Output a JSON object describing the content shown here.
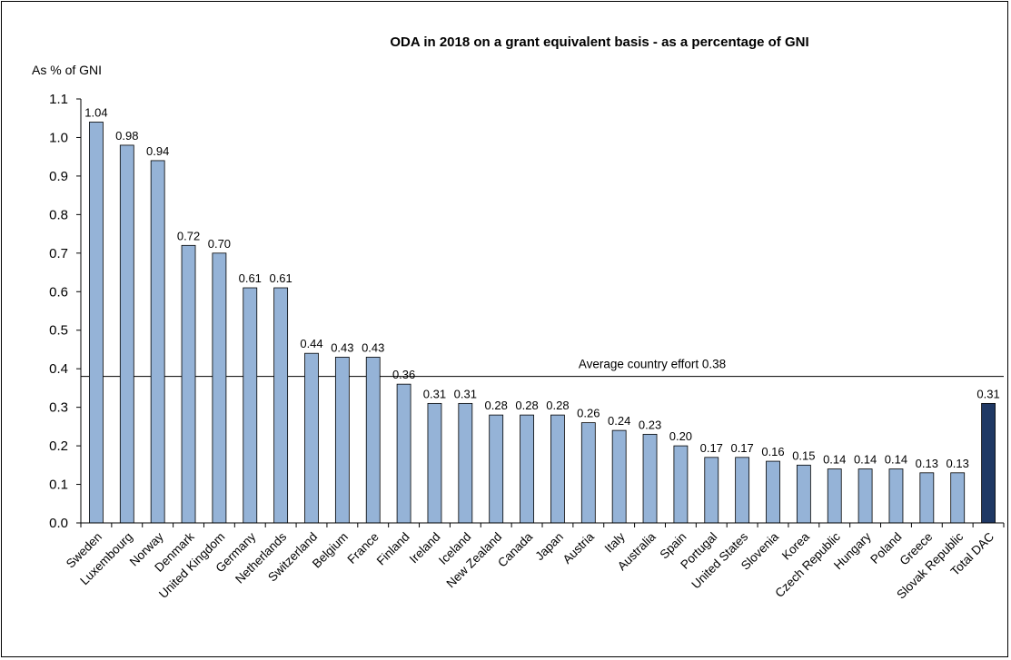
{
  "chart_data": {
    "type": "bar",
    "title": "ODA in 2018 on a grant equivalent basis  - as a percentage of GNI",
    "ylabel": "As % of GNI",
    "xlabel": "",
    "ylim": [
      0.0,
      1.1
    ],
    "yticks": [
      "0.0",
      "0.1",
      "0.2",
      "0.3",
      "0.4",
      "0.5",
      "0.6",
      "0.7",
      "0.8",
      "0.9",
      "1.0",
      "1.1"
    ],
    "grid": false,
    "legend": "none",
    "categories": [
      "Sweden",
      "Luxembourg",
      "Norway",
      "Denmark",
      "United Kingdom",
      "Germany",
      "Netherlands",
      "Switzerland",
      "Belgium",
      "France",
      "Finland",
      "Ireland",
      "Iceland",
      "New Zealand",
      "Canada",
      "Japan",
      "Austria",
      "Italy",
      "Australia",
      "Spain",
      "Portugal",
      "United States",
      "Slovenia",
      "Korea",
      "Czech Republic",
      "Hungary",
      "Poland",
      "Greece",
      "Slovak Republic",
      "Total DAC"
    ],
    "values": [
      1.04,
      0.98,
      0.94,
      0.72,
      0.7,
      0.61,
      0.61,
      0.44,
      0.43,
      0.43,
      0.36,
      0.31,
      0.31,
      0.28,
      0.28,
      0.28,
      0.26,
      0.24,
      0.23,
      0.2,
      0.17,
      0.17,
      0.16,
      0.15,
      0.14,
      0.14,
      0.14,
      0.13,
      0.13,
      0.31
    ],
    "value_labels": [
      "1.04",
      "0.98",
      "0.94",
      "0.72",
      "0.70",
      "0.61",
      "0.61",
      "0.44",
      "0.43",
      "0.43",
      "0.36",
      "0.31",
      "0.31",
      "0.28",
      "0.28",
      "0.28",
      "0.26",
      "0.24",
      "0.23",
      "0.20",
      "0.17",
      "0.17",
      "0.16",
      "0.15",
      "0.14",
      "0.14",
      "0.14",
      "0.13",
      "0.13",
      "0.31"
    ],
    "highlight_index": 29,
    "reference_line": {
      "value": 0.38,
      "label": "Average country effort 0.38"
    },
    "colors": {
      "bar": "#95b3d7",
      "highlight": "#1f3864",
      "outline": "#000000",
      "line": "#000000"
    }
  }
}
